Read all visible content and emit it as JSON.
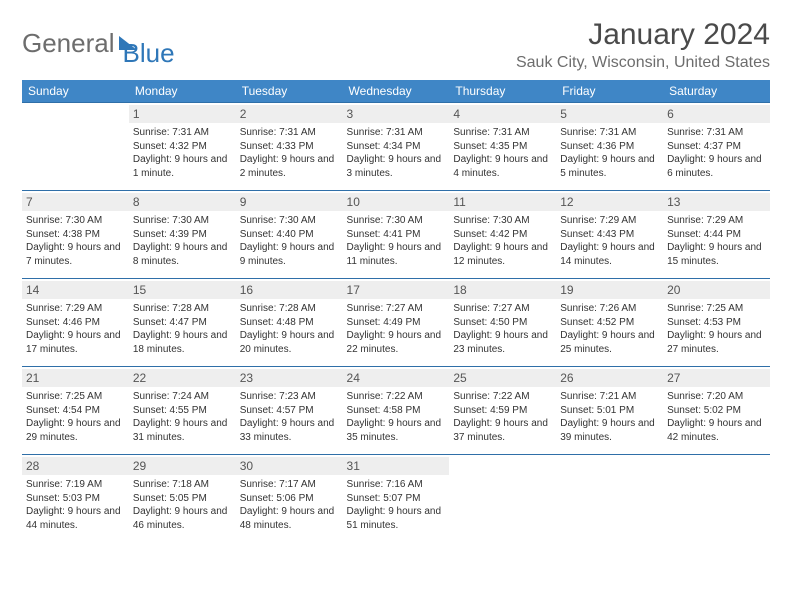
{
  "logo": {
    "general": "General",
    "blue": "Blue"
  },
  "title": "January 2024",
  "location": "Sauk City, Wisconsin, United States",
  "colors": {
    "header_bg": "#3f86c6",
    "header_text": "#ffffff",
    "row_border": "#2f6fa8",
    "daynum_bg": "#eeeeee",
    "body_text": "#333333",
    "logo_gray": "#6d6d6d",
    "logo_blue": "#2f77b8",
    "background": "#ffffff"
  },
  "day_headers": [
    "Sunday",
    "Monday",
    "Tuesday",
    "Wednesday",
    "Thursday",
    "Friday",
    "Saturday"
  ],
  "weeks": [
    [
      {
        "num": "",
        "sunrise": "",
        "sunset": "",
        "daylight": ""
      },
      {
        "num": "1",
        "sunrise": "Sunrise: 7:31 AM",
        "sunset": "Sunset: 4:32 PM",
        "daylight": "Daylight: 9 hours and 1 minute."
      },
      {
        "num": "2",
        "sunrise": "Sunrise: 7:31 AM",
        "sunset": "Sunset: 4:33 PM",
        "daylight": "Daylight: 9 hours and 2 minutes."
      },
      {
        "num": "3",
        "sunrise": "Sunrise: 7:31 AM",
        "sunset": "Sunset: 4:34 PM",
        "daylight": "Daylight: 9 hours and 3 minutes."
      },
      {
        "num": "4",
        "sunrise": "Sunrise: 7:31 AM",
        "sunset": "Sunset: 4:35 PM",
        "daylight": "Daylight: 9 hours and 4 minutes."
      },
      {
        "num": "5",
        "sunrise": "Sunrise: 7:31 AM",
        "sunset": "Sunset: 4:36 PM",
        "daylight": "Daylight: 9 hours and 5 minutes."
      },
      {
        "num": "6",
        "sunrise": "Sunrise: 7:31 AM",
        "sunset": "Sunset: 4:37 PM",
        "daylight": "Daylight: 9 hours and 6 minutes."
      }
    ],
    [
      {
        "num": "7",
        "sunrise": "Sunrise: 7:30 AM",
        "sunset": "Sunset: 4:38 PM",
        "daylight": "Daylight: 9 hours and 7 minutes."
      },
      {
        "num": "8",
        "sunrise": "Sunrise: 7:30 AM",
        "sunset": "Sunset: 4:39 PM",
        "daylight": "Daylight: 9 hours and 8 minutes."
      },
      {
        "num": "9",
        "sunrise": "Sunrise: 7:30 AM",
        "sunset": "Sunset: 4:40 PM",
        "daylight": "Daylight: 9 hours and 9 minutes."
      },
      {
        "num": "10",
        "sunrise": "Sunrise: 7:30 AM",
        "sunset": "Sunset: 4:41 PM",
        "daylight": "Daylight: 9 hours and 11 minutes."
      },
      {
        "num": "11",
        "sunrise": "Sunrise: 7:30 AM",
        "sunset": "Sunset: 4:42 PM",
        "daylight": "Daylight: 9 hours and 12 minutes."
      },
      {
        "num": "12",
        "sunrise": "Sunrise: 7:29 AM",
        "sunset": "Sunset: 4:43 PM",
        "daylight": "Daylight: 9 hours and 14 minutes."
      },
      {
        "num": "13",
        "sunrise": "Sunrise: 7:29 AM",
        "sunset": "Sunset: 4:44 PM",
        "daylight": "Daylight: 9 hours and 15 minutes."
      }
    ],
    [
      {
        "num": "14",
        "sunrise": "Sunrise: 7:29 AM",
        "sunset": "Sunset: 4:46 PM",
        "daylight": "Daylight: 9 hours and 17 minutes."
      },
      {
        "num": "15",
        "sunrise": "Sunrise: 7:28 AM",
        "sunset": "Sunset: 4:47 PM",
        "daylight": "Daylight: 9 hours and 18 minutes."
      },
      {
        "num": "16",
        "sunrise": "Sunrise: 7:28 AM",
        "sunset": "Sunset: 4:48 PM",
        "daylight": "Daylight: 9 hours and 20 minutes."
      },
      {
        "num": "17",
        "sunrise": "Sunrise: 7:27 AM",
        "sunset": "Sunset: 4:49 PM",
        "daylight": "Daylight: 9 hours and 22 minutes."
      },
      {
        "num": "18",
        "sunrise": "Sunrise: 7:27 AM",
        "sunset": "Sunset: 4:50 PM",
        "daylight": "Daylight: 9 hours and 23 minutes."
      },
      {
        "num": "19",
        "sunrise": "Sunrise: 7:26 AM",
        "sunset": "Sunset: 4:52 PM",
        "daylight": "Daylight: 9 hours and 25 minutes."
      },
      {
        "num": "20",
        "sunrise": "Sunrise: 7:25 AM",
        "sunset": "Sunset: 4:53 PM",
        "daylight": "Daylight: 9 hours and 27 minutes."
      }
    ],
    [
      {
        "num": "21",
        "sunrise": "Sunrise: 7:25 AM",
        "sunset": "Sunset: 4:54 PM",
        "daylight": "Daylight: 9 hours and 29 minutes."
      },
      {
        "num": "22",
        "sunrise": "Sunrise: 7:24 AM",
        "sunset": "Sunset: 4:55 PM",
        "daylight": "Daylight: 9 hours and 31 minutes."
      },
      {
        "num": "23",
        "sunrise": "Sunrise: 7:23 AM",
        "sunset": "Sunset: 4:57 PM",
        "daylight": "Daylight: 9 hours and 33 minutes."
      },
      {
        "num": "24",
        "sunrise": "Sunrise: 7:22 AM",
        "sunset": "Sunset: 4:58 PM",
        "daylight": "Daylight: 9 hours and 35 minutes."
      },
      {
        "num": "25",
        "sunrise": "Sunrise: 7:22 AM",
        "sunset": "Sunset: 4:59 PM",
        "daylight": "Daylight: 9 hours and 37 minutes."
      },
      {
        "num": "26",
        "sunrise": "Sunrise: 7:21 AM",
        "sunset": "Sunset: 5:01 PM",
        "daylight": "Daylight: 9 hours and 39 minutes."
      },
      {
        "num": "27",
        "sunrise": "Sunrise: 7:20 AM",
        "sunset": "Sunset: 5:02 PM",
        "daylight": "Daylight: 9 hours and 42 minutes."
      }
    ],
    [
      {
        "num": "28",
        "sunrise": "Sunrise: 7:19 AM",
        "sunset": "Sunset: 5:03 PM",
        "daylight": "Daylight: 9 hours and 44 minutes."
      },
      {
        "num": "29",
        "sunrise": "Sunrise: 7:18 AM",
        "sunset": "Sunset: 5:05 PM",
        "daylight": "Daylight: 9 hours and 46 minutes."
      },
      {
        "num": "30",
        "sunrise": "Sunrise: 7:17 AM",
        "sunset": "Sunset: 5:06 PM",
        "daylight": "Daylight: 9 hours and 48 minutes."
      },
      {
        "num": "31",
        "sunrise": "Sunrise: 7:16 AM",
        "sunset": "Sunset: 5:07 PM",
        "daylight": "Daylight: 9 hours and 51 minutes."
      },
      {
        "num": "",
        "sunrise": "",
        "sunset": "",
        "daylight": ""
      },
      {
        "num": "",
        "sunrise": "",
        "sunset": "",
        "daylight": ""
      },
      {
        "num": "",
        "sunrise": "",
        "sunset": "",
        "daylight": ""
      }
    ]
  ]
}
